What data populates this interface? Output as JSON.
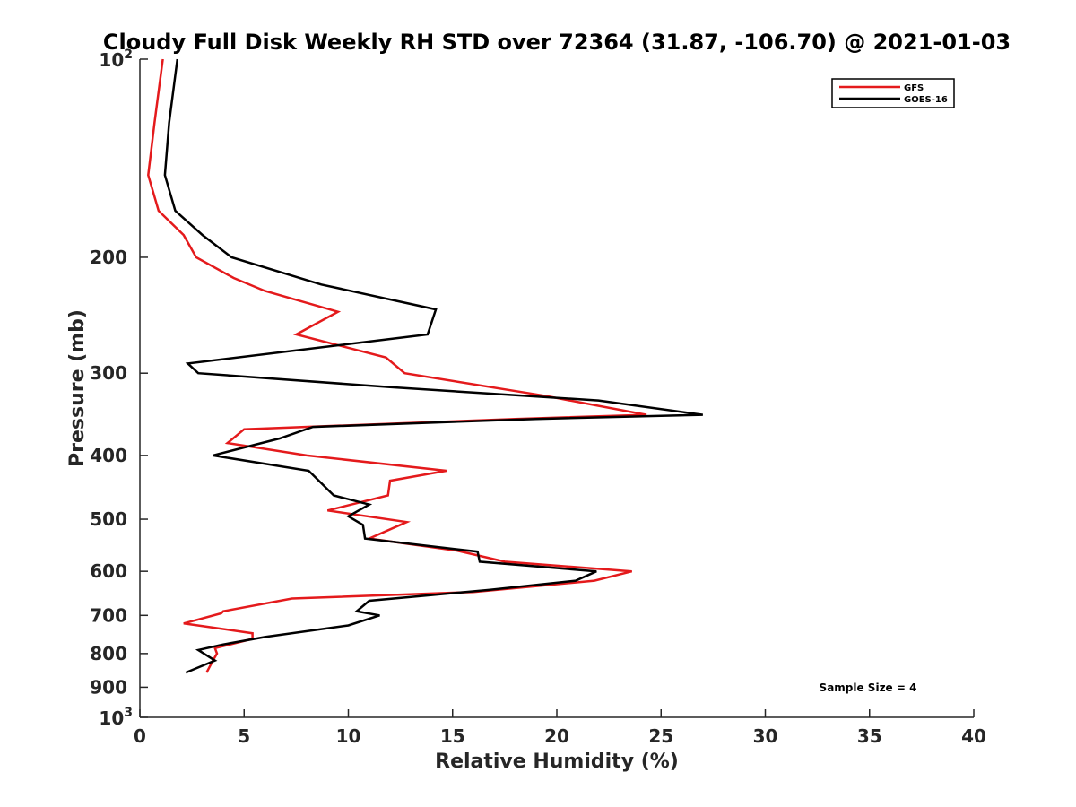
{
  "chart_data": {
    "type": "line",
    "title": "Cloudy Full Disk Weekly RH STD over 72364 (31.87, -106.70) @ 2021-01-03",
    "xlabel": "Relative Humidity (%)",
    "ylabel": "Pressure (mb)",
    "xlim": [
      0,
      40
    ],
    "ylim": [
      100,
      1000
    ],
    "y_scale": "log",
    "y_reversed": true,
    "grid": false,
    "legend_position": "top-right",
    "x_ticks": [
      "0",
      "5",
      "10",
      "15",
      "20",
      "25",
      "30",
      "35",
      "40"
    ],
    "y_ticks": [
      {
        "value": 100,
        "base": "10",
        "exp": "2"
      },
      {
        "value": 200,
        "label": "200"
      },
      {
        "value": 300,
        "label": "300"
      },
      {
        "value": 400,
        "label": "400"
      },
      {
        "value": 500,
        "label": "500"
      },
      {
        "value": 600,
        "label": "600"
      },
      {
        "value": 700,
        "label": "700"
      },
      {
        "value": 800,
        "label": "800"
      },
      {
        "value": 900,
        "label": "900"
      },
      {
        "value": 1000,
        "base": "10",
        "exp": "3"
      }
    ],
    "annotation": "Sample Size = 4",
    "series": [
      {
        "name": "GFS",
        "color": "#e41a1c",
        "points": [
          [
            1.1,
            100
          ],
          [
            0.7,
            125
          ],
          [
            0.4,
            150
          ],
          [
            0.9,
            170
          ],
          [
            2.1,
            185
          ],
          [
            2.7,
            200
          ],
          [
            4.5,
            215
          ],
          [
            6.0,
            225
          ],
          [
            9.5,
            242
          ],
          [
            7.5,
            262
          ],
          [
            11.8,
            284
          ],
          [
            12.7,
            300
          ],
          [
            19.5,
            325
          ],
          [
            24.3,
            347
          ],
          [
            18.0,
            352
          ],
          [
            5.0,
            365
          ],
          [
            4.2,
            383
          ],
          [
            8.0,
            400
          ],
          [
            14.7,
            422
          ],
          [
            12.0,
            437
          ],
          [
            11.9,
            460
          ],
          [
            9.0,
            485
          ],
          [
            12.8,
            505
          ],
          [
            11.0,
            535
          ],
          [
            15.2,
            558
          ],
          [
            17.5,
            580
          ],
          [
            23.6,
            600
          ],
          [
            21.8,
            620
          ],
          [
            16.0,
            645
          ],
          [
            7.3,
            660
          ],
          [
            4.0,
            690
          ],
          [
            3.9,
            695
          ],
          [
            2.1,
            720
          ],
          [
            5.4,
            745
          ],
          [
            5.4,
            760
          ],
          [
            3.6,
            785
          ],
          [
            3.7,
            800
          ],
          [
            3.5,
            820
          ],
          [
            3.2,
            855
          ]
        ]
      },
      {
        "name": "GOES-16",
        "color": "#000000",
        "points": [
          [
            1.8,
            100
          ],
          [
            1.4,
            125
          ],
          [
            1.2,
            150
          ],
          [
            1.7,
            170
          ],
          [
            3.0,
            185
          ],
          [
            4.4,
            200
          ],
          [
            8.7,
            220
          ],
          [
            14.2,
            240
          ],
          [
            13.8,
            262
          ],
          [
            2.3,
            290
          ],
          [
            2.8,
            300
          ],
          [
            12.0,
            315
          ],
          [
            22.0,
            330
          ],
          [
            27.0,
            347
          ],
          [
            19.0,
            352
          ],
          [
            8.3,
            362
          ],
          [
            6.7,
            377
          ],
          [
            3.5,
            400
          ],
          [
            8.1,
            422
          ],
          [
            9.3,
            460
          ],
          [
            11.0,
            475
          ],
          [
            10.0,
            495
          ],
          [
            10.7,
            510
          ],
          [
            10.8,
            535
          ],
          [
            16.2,
            560
          ],
          [
            16.3,
            580
          ],
          [
            21.9,
            600
          ],
          [
            20.9,
            620
          ],
          [
            16.8,
            640
          ],
          [
            11.0,
            665
          ],
          [
            10.4,
            690
          ],
          [
            11.5,
            700
          ],
          [
            10.0,
            725
          ],
          [
            6.0,
            755
          ],
          [
            4.0,
            775
          ],
          [
            2.8,
            790
          ],
          [
            3.6,
            820
          ],
          [
            2.2,
            855
          ]
        ]
      }
    ]
  }
}
